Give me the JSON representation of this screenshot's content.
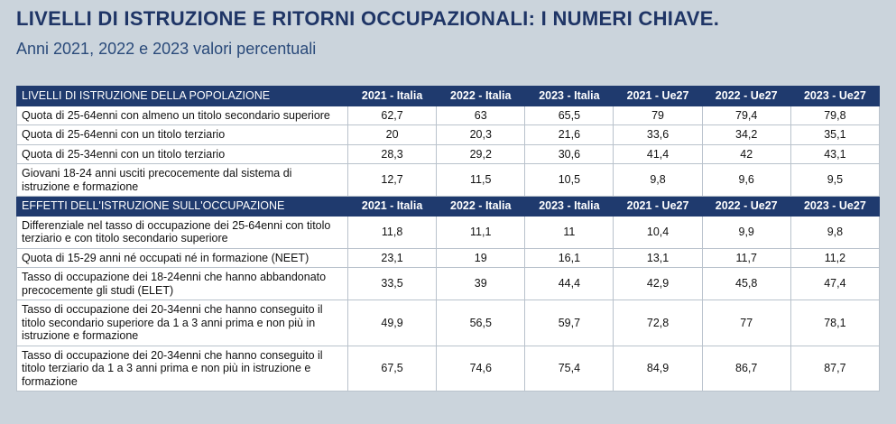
{
  "header": {
    "title": "LIVELLI DI ISTRUZIONE E RITORNI OCCUPAZIONALI: I NUMERI CHIAVE.",
    "subtitle": "Anni 2021, 2022 e 2023 valori percentuali"
  },
  "table": {
    "sections": [
      {
        "header": [
          "LIVELLI DI ISTRUZIONE DELLA POPOLAZIONE",
          "2021 - Italia",
          "2022 - Italia",
          "2023 - Italia",
          "2021 - Ue27",
          "2022 - Ue27",
          "2023 - Ue27"
        ],
        "rows": [
          [
            "Quota di 25-64enni con almeno un titolo secondario superiore",
            "62,7",
            "63",
            "65,5",
            "79",
            "79,4",
            "79,8"
          ],
          [
            "Quota di 25-64enni con un titolo terziario",
            "20",
            "20,3",
            "21,6",
            "33,6",
            "34,2",
            "35,1"
          ],
          [
            "Quota di 25-34enni con un titolo terziario",
            "28,3",
            "29,2",
            "30,6",
            "41,4",
            "42",
            "43,1"
          ],
          [
            "Giovani 18-24 anni usciti precocemente dal sistema di istruzione e formazione",
            "12,7",
            "11,5",
            "10,5",
            "9,8",
            "9,6",
            "9,5"
          ]
        ]
      },
      {
        "header": [
          "EFFETTI DELL'ISTRUZIONE SULL'OCCUPAZIONE",
          "2021 - Italia",
          "2022 - Italia",
          "2023 - Italia",
          "2021 - Ue27",
          "2022 - Ue27",
          "2023 - Ue27"
        ],
        "rows": [
          [
            "Differenziale nel tasso di occupazione dei 25-64enni con titolo terziario e con titolo secondario superiore",
            "11,8",
            "11,1",
            "11",
            "10,4",
            "9,9",
            "9,8"
          ],
          [
            "Quota di 15-29 anni né occupati né in formazione (NEET)",
            "23,1",
            "19",
            "16,1",
            "13,1",
            "11,7",
            "11,2"
          ],
          [
            "Tasso di occupazione dei 18-24enni che hanno abbandonato precocemente gli studi (ELET)",
            "33,5",
            "39",
            "44,4",
            "42,9",
            "45,8",
            "47,4"
          ],
          [
            "Tasso di occupazione dei 20-34enni che hanno conseguito il titolo secondario superiore da 1 a 3 anni prima e non più in istruzione e formazione",
            "49,9",
            "56,5",
            "59,7",
            "72,8",
            "77",
            "78,1"
          ],
          [
            "Tasso di occupazione dei 20-34enni che hanno conseguito il titolo terziario da 1 a 3 anni prima e non più in istruzione e formazione",
            "67,5",
            "74,6",
            "75,4",
            "84,9",
            "86,7",
            "87,7"
          ]
        ]
      }
    ]
  }
}
